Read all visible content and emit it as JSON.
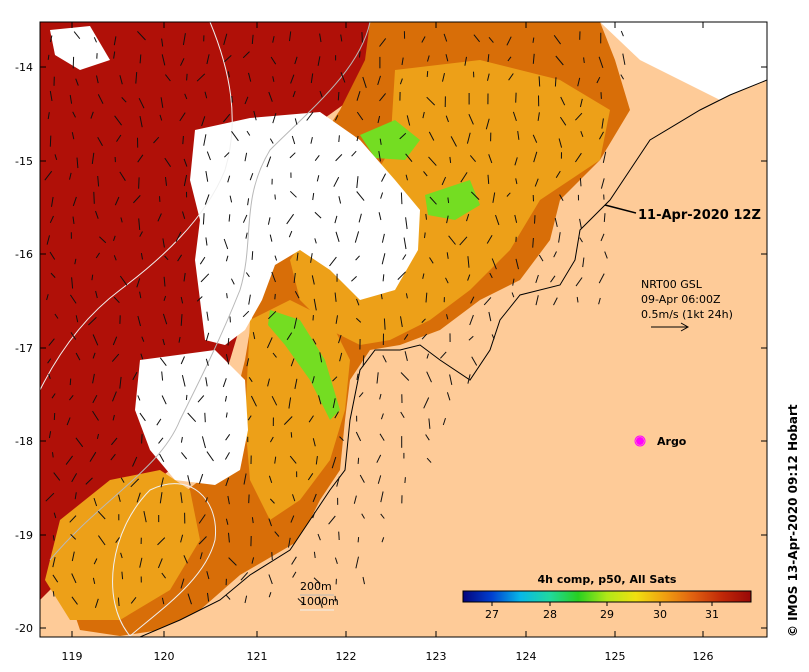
{
  "map": {
    "lat_ticks": [
      "-14",
      "-15",
      "-16",
      "-17",
      "-18",
      "-19",
      "-20"
    ],
    "lon_ticks": [
      "119",
      "120",
      "121",
      "122",
      "123",
      "124",
      "125",
      "126"
    ],
    "colors": {
      "land": "#fecb98",
      "very_warm": "#b01008",
      "warm": "#d86e08",
      "mid": "#eda018",
      "cool": "#74dd22",
      "cloud": "#ffffff",
      "contour": "#b8b8b8"
    }
  },
  "labels": {
    "timestamp": "11-Apr-2020 12Z",
    "current_source": "NRT00 GSL",
    "current_time": "09-Apr 06:00Z",
    "current_scale": "0.5m/s (1kt 24h)",
    "argo": "Argo",
    "isobath_200": "200m",
    "isobath_1000": "1000m",
    "credit": "© IMOS 13-Apr-2020 09:12 Hobart"
  },
  "colorbar": {
    "title": "4h comp, p50, All Sats",
    "ticks": [
      "27",
      "28",
      "29",
      "30",
      "31"
    ],
    "stops": [
      "#04047c",
      "#0040d0",
      "#08b8e8",
      "#20d8a0",
      "#28d020",
      "#b0e818",
      "#f0e010",
      "#f0a010",
      "#e06010",
      "#c02808",
      "#980808"
    ]
  }
}
